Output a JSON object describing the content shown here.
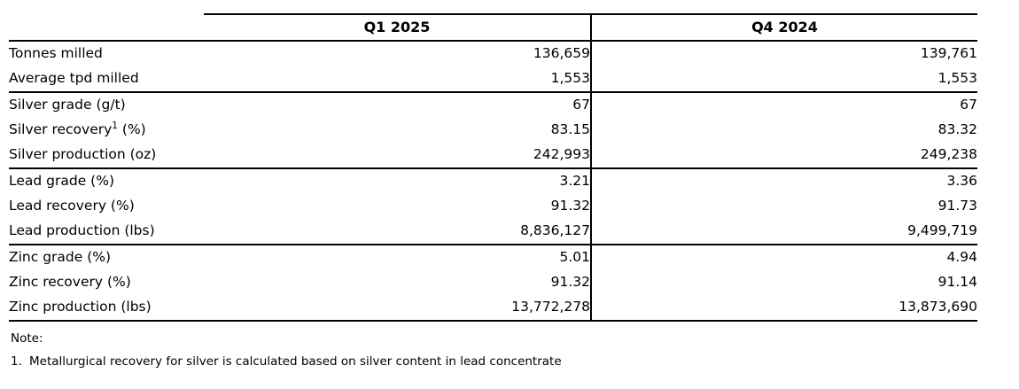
{
  "colors": {
    "background": "#ffffff",
    "text": "#000000",
    "rule_lines": "#000000"
  },
  "table": {
    "columns": [
      "Q1 2025",
      "Q4 2024"
    ],
    "rows": [
      {
        "label": "Tonnes milled",
        "q1": "136,659",
        "q4": "139,761"
      },
      {
        "label": "Average tpd milled",
        "q1": "1,553",
        "q4": "1,553"
      },
      {
        "label": "Silver grade (g/t)",
        "q1": "67",
        "q4": "67"
      },
      {
        "label_pre": "Silver recovery",
        "label_sup": "1",
        "label_post": " (%)",
        "q1": "83.15",
        "q4": "83.32"
      },
      {
        "label": "Silver production (oz)",
        "q1": "242,993",
        "q4": "249,238"
      },
      {
        "label": "Lead grade (%)",
        "q1": "3.21",
        "q4": "3.36"
      },
      {
        "label": "Lead recovery (%)",
        "q1": "91.32",
        "q4": "91.73"
      },
      {
        "label": "Lead production (lbs)",
        "q1": "8,836,127",
        "q4": "9,499,719"
      },
      {
        "label": "Zinc grade (%)",
        "q1": "5.01",
        "q4": "4.94"
      },
      {
        "label": "Zinc recovery (%)",
        "q1": "91.32",
        "q4": "91.14"
      },
      {
        "label": "Zinc production (lbs)",
        "q1": "13,772,278",
        "q4": "13,873,690"
      }
    ]
  },
  "note": {
    "heading": "Note:",
    "items": [
      {
        "marker": "1.",
        "text": "Metallurgical recovery for silver is calculated based on silver content in lead concentrate"
      }
    ]
  }
}
